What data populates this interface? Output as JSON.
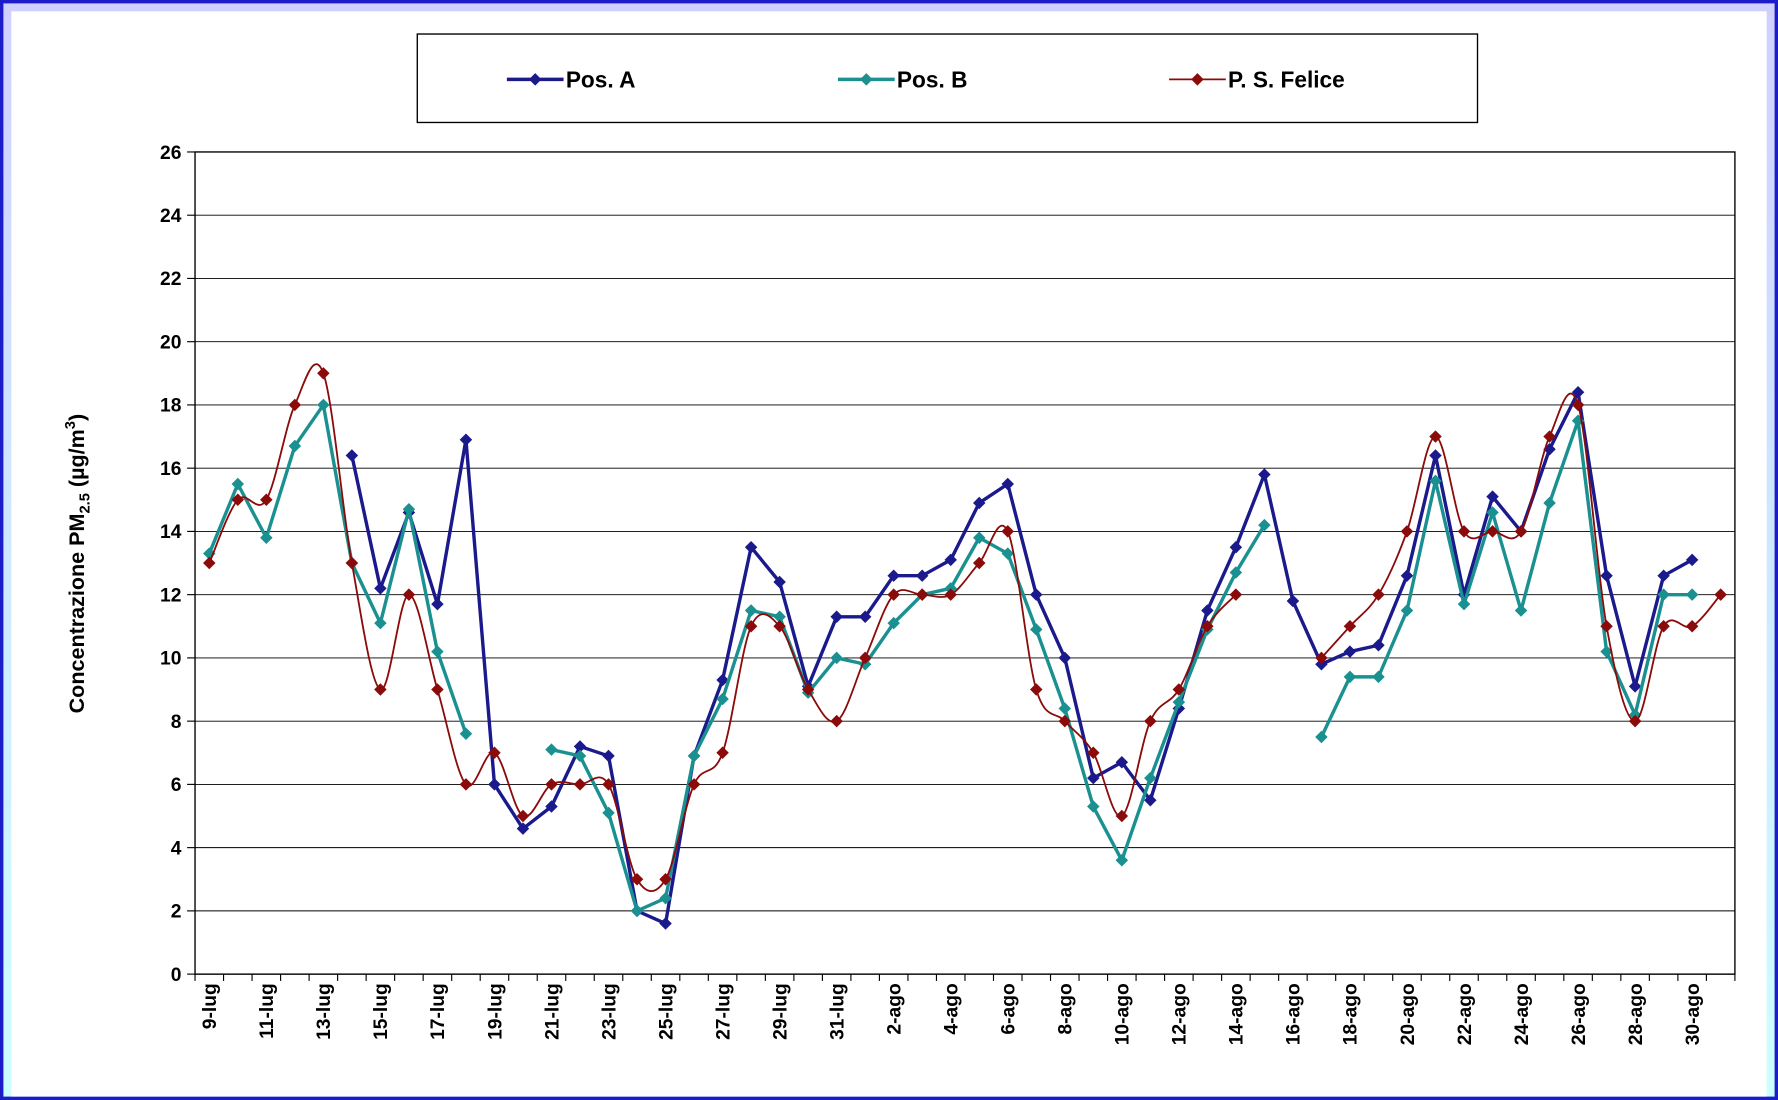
{
  "chart_data": {
    "type": "line",
    "ylabel": [
      "Concentrazione PM",
      "2.5",
      " (µg/m",
      "3",
      ")"
    ],
    "categories": [
      "9-lug",
      null,
      "11-lug",
      null,
      "13-lug",
      null,
      "15-lug",
      null,
      "17-lug",
      null,
      "19-lug",
      null,
      "21-lug",
      null,
      "23-lug",
      null,
      "25-lug",
      null,
      "27-lug",
      null,
      "29-lug",
      null,
      "31-lug",
      null,
      "2-ago",
      null,
      "4-ago",
      null,
      "6-ago",
      null,
      "8-ago",
      null,
      "10-ago",
      null,
      "12-ago",
      null,
      "14-ago",
      null,
      "16-ago",
      null,
      "18-ago",
      null,
      "20-ago",
      null,
      "22-ago",
      null,
      "24-ago",
      null,
      "26-ago",
      null,
      "28-ago",
      null,
      "30-ago",
      null
    ],
    "series": [
      {
        "name": "Pos. A",
        "color": "#1a1a8c",
        "smooth": false,
        "values": [
          null,
          null,
          null,
          null,
          null,
          16.4,
          12.2,
          14.6,
          11.7,
          16.9,
          6.0,
          4.6,
          5.3,
          7.2,
          6.9,
          2.0,
          1.6,
          6.9,
          9.3,
          13.5,
          12.4,
          9.1,
          11.3,
          11.3,
          12.6,
          12.6,
          13.1,
          14.9,
          15.5,
          12.0,
          10.0,
          6.2,
          6.7,
          5.5,
          8.4,
          11.5,
          13.5,
          15.8,
          11.8,
          9.8,
          10.2,
          10.4,
          12.6,
          16.4,
          12.0,
          15.1,
          14.0,
          16.6,
          18.4,
          12.6,
          9.1,
          12.6,
          13.1,
          null
        ]
      },
      {
        "name": "Pos. B",
        "color": "#1a9090",
        "smooth": false,
        "values": [
          13.3,
          15.5,
          13.8,
          16.7,
          18.0,
          13.0,
          11.1,
          14.7,
          10.2,
          7.6,
          null,
          null,
          7.1,
          6.9,
          5.1,
          2.0,
          2.4,
          6.9,
          8.7,
          11.5,
          11.3,
          8.9,
          10.0,
          9.8,
          11.1,
          12.0,
          12.2,
          13.8,
          13.3,
          10.9,
          8.4,
          5.3,
          3.6,
          6.2,
          8.6,
          10.9,
          12.7,
          14.2,
          null,
          7.5,
          9.4,
          9.4,
          11.5,
          15.6,
          11.7,
          14.6,
          11.5,
          14.9,
          17.5,
          10.2,
          8.2,
          12.0,
          12.0,
          null
        ]
      },
      {
        "name": "P. S. Felice",
        "color": "#8b0a0a",
        "smooth": true,
        "values": [
          13,
          15,
          15,
          18,
          19,
          13,
          9,
          12,
          9,
          6,
          7,
          5,
          6,
          6,
          6,
          3,
          3,
          6,
          7,
          11,
          11,
          9,
          8,
          10,
          12,
          12,
          12,
          13,
          14,
          9,
          8,
          7,
          5,
          8,
          9,
          11,
          12,
          null,
          null,
          10,
          11,
          12,
          14,
          17,
          14,
          14,
          14,
          17,
          18,
          11,
          8,
          11,
          11,
          12
        ]
      }
    ],
    "ylim": [
      0,
      26
    ],
    "yticks": [
      0,
      2,
      4,
      6,
      8,
      10,
      12,
      14,
      16,
      18,
      20,
      22,
      24,
      26
    ],
    "grid": true,
    "legend": "top"
  }
}
